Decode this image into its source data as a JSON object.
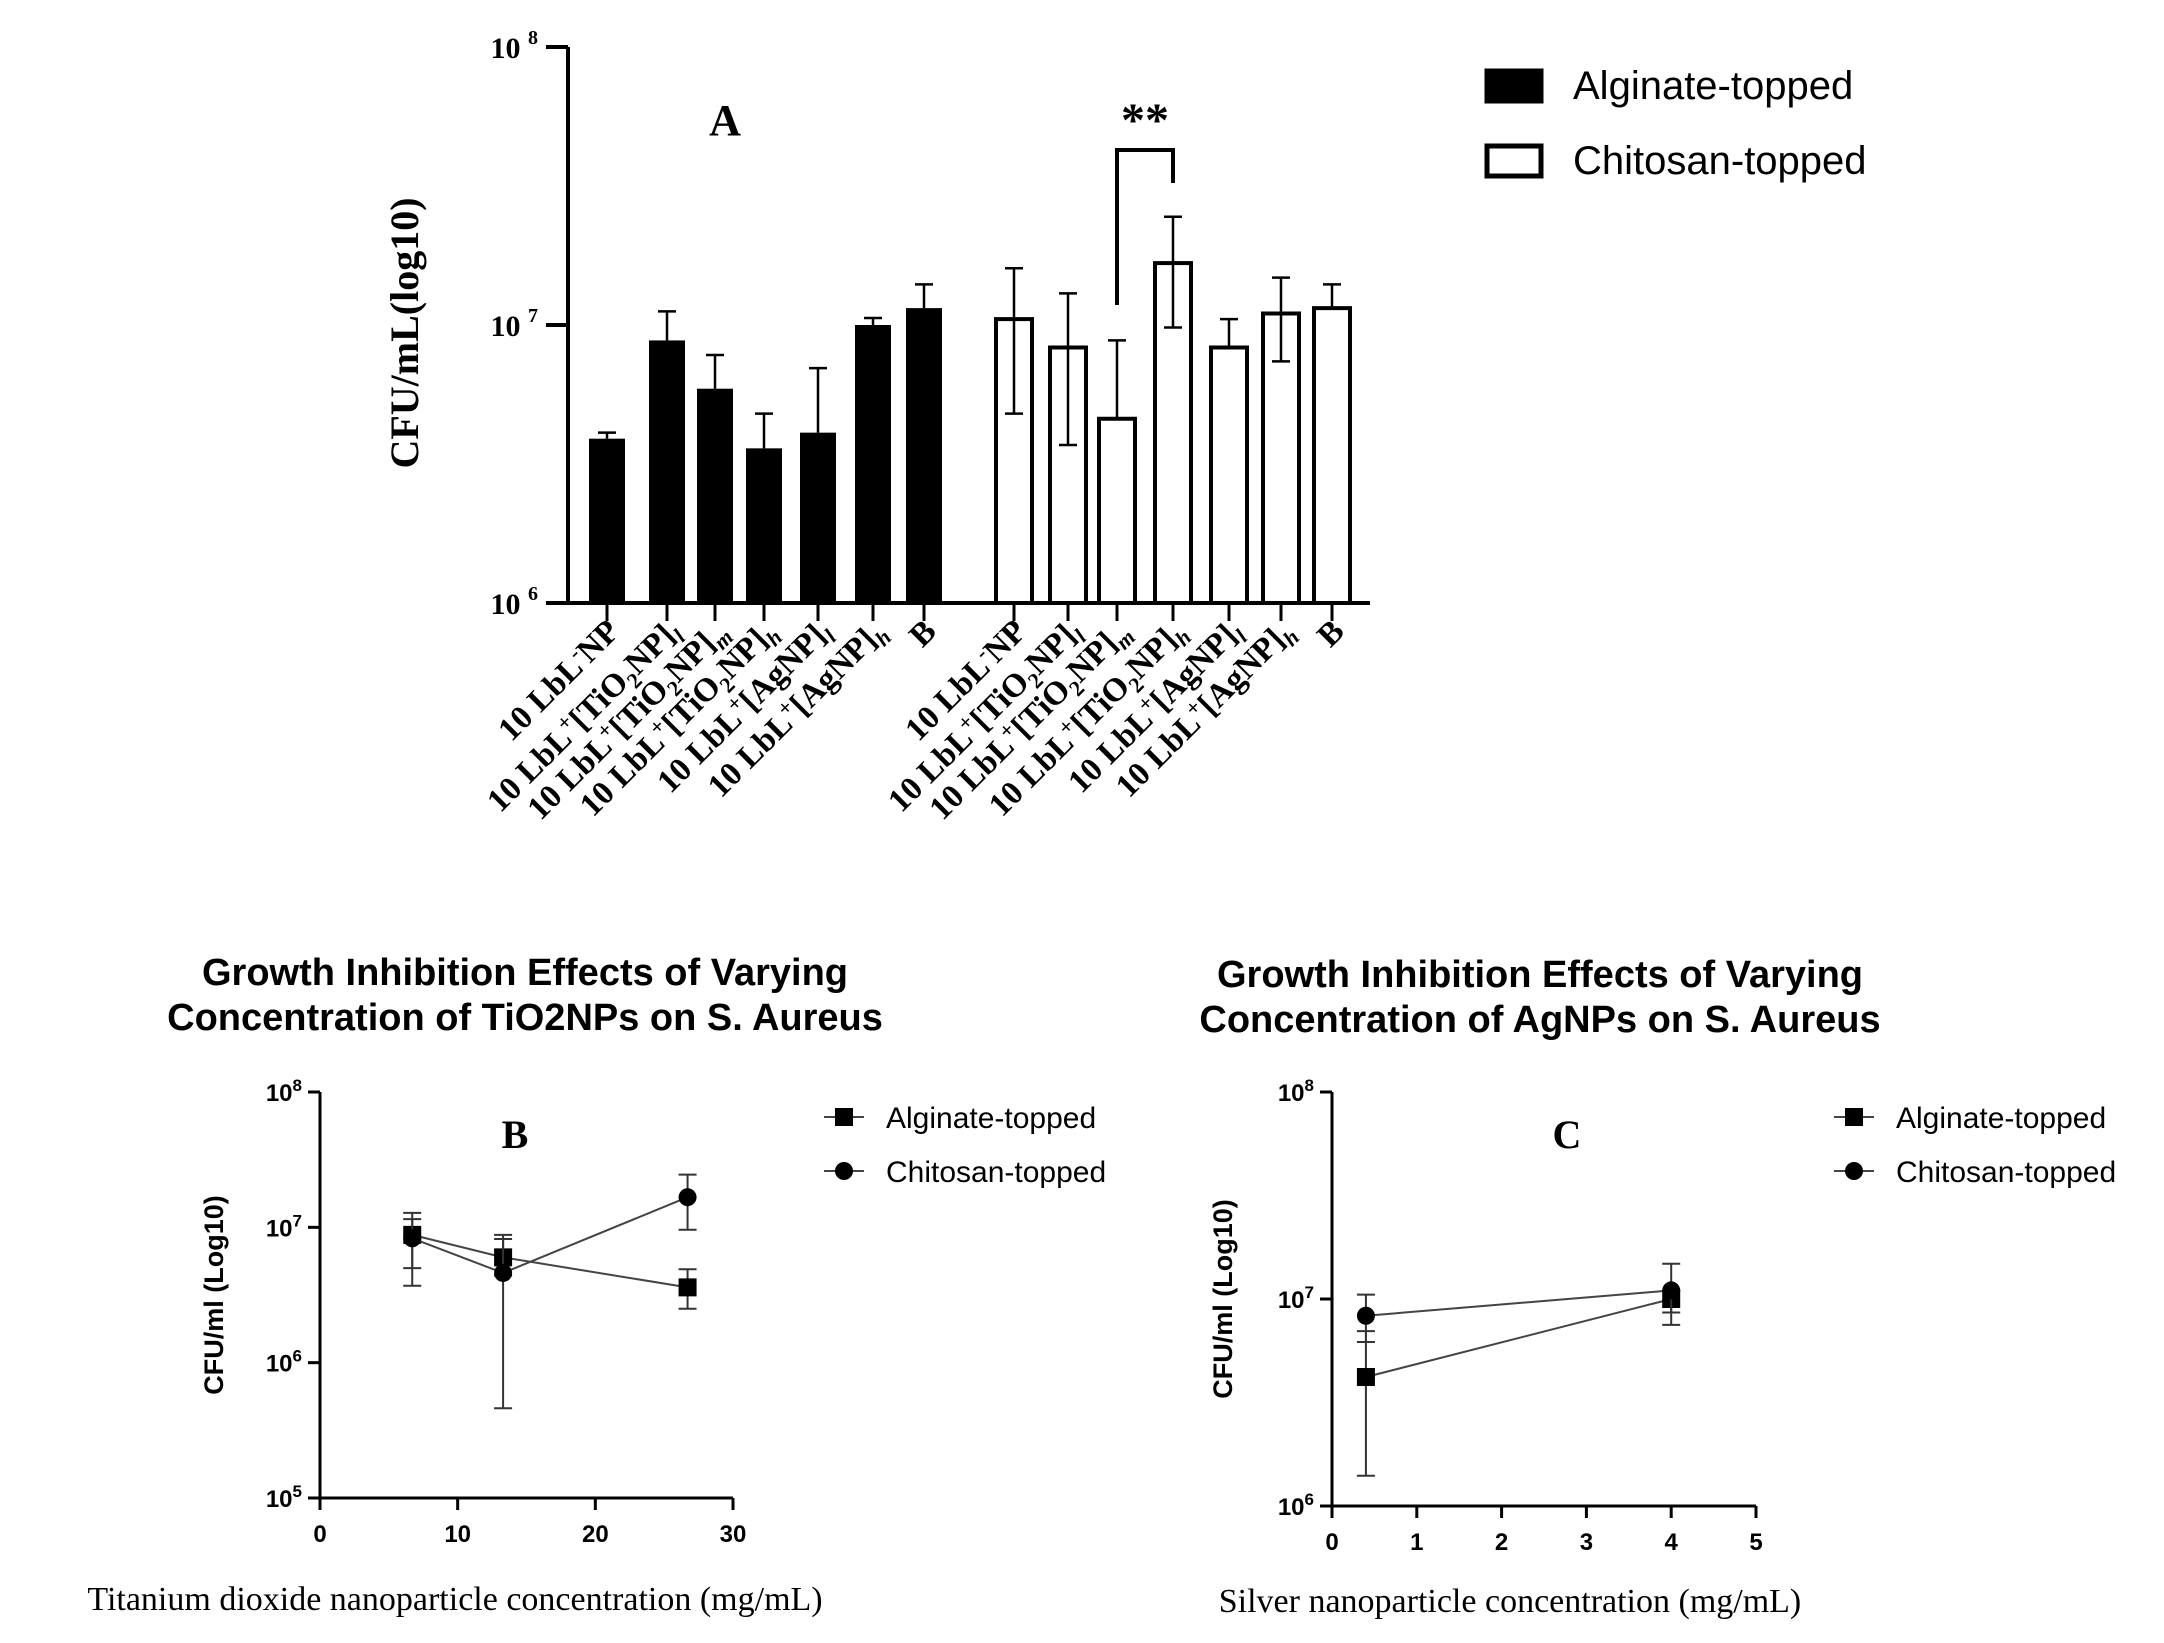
{
  "chart_data": [
    {
      "panel": "A",
      "type": "bar",
      "title": "",
      "xlabel": "",
      "ylabel": "CFU/mL(log10)",
      "yscale": "log",
      "ylim": [
        1000000,
        100000000
      ],
      "yticks": [
        {
          "value": 1000000,
          "base": "10",
          "exp": "6"
        },
        {
          "value": 10000000,
          "base": "10",
          "exp": "7"
        },
        {
          "value": 100000000,
          "base": "10",
          "exp": "8"
        }
      ],
      "categories": [
        {
          "base": "10 LbL",
          "sup": "-",
          "mid": "NP",
          "sub": "",
          "tail": ""
        },
        {
          "base": "10 LbL",
          "sup": "+",
          "mid": "[TiO",
          "sub2": "2",
          "mid2": "NP]",
          "sub": "l",
          "tail": ""
        },
        {
          "base": "10 LbL",
          "sup": "+",
          "mid": "[TiO",
          "sub2": "2",
          "mid2": "NP]",
          "sub": "m",
          "tail": ""
        },
        {
          "base": "10 LbL",
          "sup": "+",
          "mid": "[TiO",
          "sub2": "2",
          "mid2": "NP]",
          "sub": "h",
          "tail": ""
        },
        {
          "base": "10 LbL",
          "sup": "+",
          "mid": "[AgNP]",
          "sub": "l",
          "tail": ""
        },
        {
          "base": "10 LbL",
          "sup": "+",
          "mid": "[AgNP]",
          "sub": "h",
          "tail": ""
        },
        {
          "base": "B",
          "sup": "",
          "mid": "",
          "sub": "",
          "tail": ""
        }
      ],
      "series": [
        {
          "name": "Alginate-topped",
          "fill": "#000000",
          "values": [
            3900000,
            8800000,
            5900000,
            3600000,
            4100000,
            10000000,
            11500000
          ],
          "errors": [
            4100000,
            11200000,
            7800000,
            4800000,
            7000000,
            10600000,
            14000000
          ]
        },
        {
          "name": "Chitosan-topped",
          "fill": "#ffffff",
          "values": [
            10500000,
            8300000,
            4600000,
            16700000,
            8300000,
            11000000,
            11500000
          ],
          "errors": [
            16000000,
            13000000,
            8800000,
            24500000,
            10500000,
            14800000,
            14000000
          ],
          "errors_low": [
            4800000,
            3700000,
            0,
            9800000,
            0,
            7400000,
            0
          ]
        }
      ],
      "legend": {
        "position": "top-right",
        "items": [
          "Alginate-topped",
          "Chitosan-topped"
        ]
      },
      "annotations": [
        {
          "text": "**",
          "between": [
            2,
            3
          ],
          "series": "Chitosan-topped"
        }
      ]
    },
    {
      "panel": "B",
      "type": "line",
      "title": "Growth Inhibition Effects of Varying Concentration of TiO2NPs on S. Aureus",
      "title_lines": [
        "Growth Inhibition Effects of Varying",
        "Concentration of TiO2NPs on S. Aureus"
      ],
      "xlabel": "Titanium dioxide nanoparticle concentration (mg/mL)",
      "ylabel": "CFU/ml (Log10)",
      "yscale": "log",
      "xlim": [
        0,
        30
      ],
      "ylim": [
        100000,
        100000000
      ],
      "xticks": [
        0,
        10,
        20,
        30
      ],
      "yticks": [
        {
          "value": 100000,
          "base": "10",
          "exp": "5"
        },
        {
          "value": 1000000,
          "base": "10",
          "exp": "6"
        },
        {
          "value": 10000000,
          "base": "10",
          "exp": "7"
        },
        {
          "value": 100000000,
          "base": "10",
          "exp": "8"
        }
      ],
      "series": [
        {
          "name": "Alginate-topped",
          "marker": "square",
          "x": [
            6.7,
            13.3,
            26.7
          ],
          "y": [
            8800000,
            6000000,
            3600000
          ],
          "err_low": [
            5000000,
            4400000,
            2500000
          ],
          "err_high": [
            11500000,
            8200000,
            4900000
          ]
        },
        {
          "name": "Chitosan-topped",
          "marker": "circle",
          "x": [
            6.7,
            13.3,
            26.7
          ],
          "y": [
            8300000,
            4600000,
            16700000
          ],
          "err_low": [
            3700000,
            460000,
            9600000
          ],
          "err_high": [
            12800000,
            8800000,
            24500000
          ]
        }
      ],
      "legend": {
        "position": "top-right",
        "items": [
          "Alginate-topped",
          "Chitosan-topped"
        ]
      }
    },
    {
      "panel": "C",
      "type": "line",
      "title": "Growth Inhibition Effects of Varying Concentration of AgNPs on S. Aureus",
      "title_lines": [
        "Growth Inhibition Effects of Varying",
        "Concentration of AgNPs on S. Aureus"
      ],
      "xlabel": "Silver nanoparticle concentration (mg/mL)",
      "ylabel": "CFU/ml (Log10)",
      "yscale": "log",
      "xlim": [
        0,
        5
      ],
      "ylim": [
        1000000,
        100000000
      ],
      "xticks": [
        0,
        1,
        2,
        3,
        4,
        5
      ],
      "yticks": [
        {
          "value": 1000000,
          "base": "10",
          "exp": "6"
        },
        {
          "value": 10000000,
          "base": "10",
          "exp": "7"
        },
        {
          "value": 100000000,
          "base": "10",
          "exp": "8"
        }
      ],
      "series": [
        {
          "name": "Alginate-topped",
          "marker": "square",
          "x": [
            0.4,
            4
          ],
          "y": [
            4200000,
            10000000
          ],
          "err_low": [
            1400000,
            7500000
          ],
          "err_high": [
            7000000,
            11000000
          ]
        },
        {
          "name": "Chitosan-topped",
          "marker": "circle",
          "x": [
            0.4,
            4
          ],
          "y": [
            8300000,
            11000000
          ],
          "err_low": [
            6200000,
            8600000
          ],
          "err_high": [
            10500000,
            14800000
          ]
        }
      ],
      "legend": {
        "position": "top-right",
        "items": [
          "Alginate-topped",
          "Chitosan-topped"
        ]
      }
    }
  ]
}
